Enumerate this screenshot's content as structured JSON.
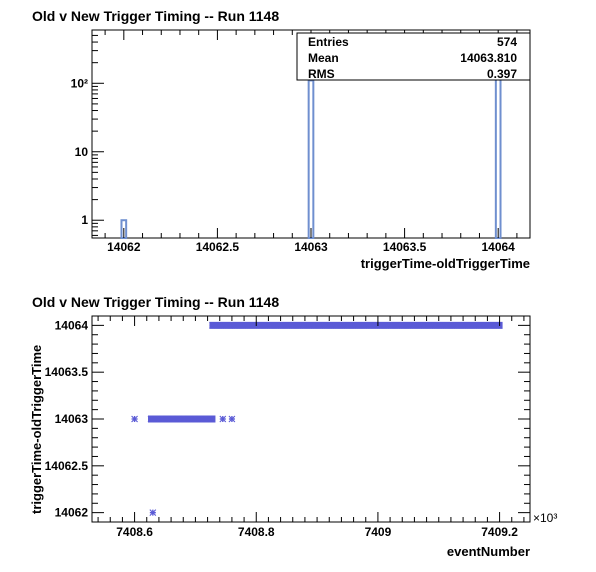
{
  "chart_data": [
    {
      "type": "bar",
      "title": "Old v New Trigger Timing -- Run 1148",
      "xlabel": "triggerTime-oldTriggerTime",
      "ylabel": "",
      "xlim": [
        14061.83,
        14064.17
      ],
      "ylim": [
        0.55,
        600
      ],
      "yscale": "log",
      "bin_width": 0.025,
      "x_ticks": [
        14062,
        14062.5,
        14063,
        14063.5,
        14064
      ],
      "x_tick_labels": [
        "14062",
        "14062.5",
        "14063",
        "14063.5",
        "14064"
      ],
      "y_ticks": [
        1,
        10,
        100
      ],
      "y_tick_labels": [
        "1",
        "10",
        "10²"
      ],
      "bins": [
        {
          "x": 14062,
          "count": 1
        },
        {
          "x": 14063,
          "count": 110
        },
        {
          "x": 14064,
          "count": 463
        }
      ],
      "line_color": "#6f8fcf",
      "stats": {
        "rows": [
          {
            "label": "Entries",
            "value": "574"
          },
          {
            "label": "Mean",
            "value": "14063.810"
          },
          {
            "label": "RMS",
            "value": "0.397"
          }
        ]
      }
    },
    {
      "type": "scatter",
      "title": "Old v New Trigger Timing -- Run 1148",
      "xlabel": "eventNumber",
      "ylabel": "triggerTime-oldTriggerTime",
      "x_multiplier_label": "×10³",
      "xlim": [
        7408.53,
        7409.25
      ],
      "ylim": [
        14061.9,
        14064.1
      ],
      "x_ticks": [
        7408.6,
        7408.8,
        7409,
        7409.2
      ],
      "x_tick_labels": [
        "7408.6",
        "7408.8",
        "7409",
        "7409.2"
      ],
      "y_ticks": [
        14062,
        14062.5,
        14063,
        14063.5,
        14064
      ],
      "y_tick_labels": [
        "14062",
        "14062.5",
        "14063",
        "14063.5",
        "14064"
      ],
      "marker_color": "#5b5bd6",
      "points": [
        [
          7408.6,
          14063
        ],
        [
          7408.63,
          14062
        ],
        [
          7408.745,
          14063
        ],
        [
          7408.76,
          14063
        ],
        [
          7408.765,
          14064
        ]
      ],
      "dense_segments": [
        {
          "y": 14063,
          "x_start": 7408.627,
          "x_end": 7408.728
        },
        {
          "y": 14064,
          "x_start": 7408.728,
          "x_end": 7409.2
        }
      ]
    }
  ]
}
